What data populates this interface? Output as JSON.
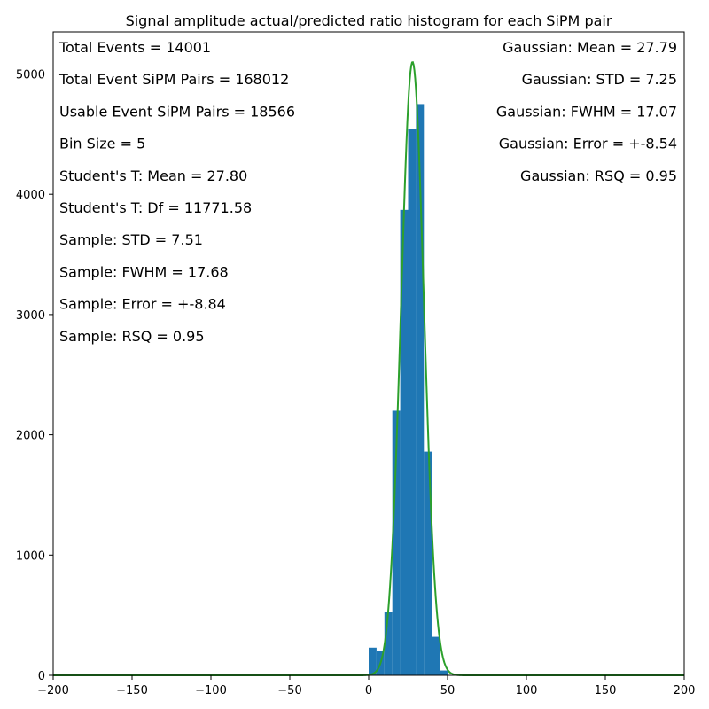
{
  "chart_data": {
    "type": "bar",
    "title": "Signal amplitude actual/predicted ratio histogram for each SiPM pair",
    "xlabel": "",
    "ylabel": "",
    "xlim": [
      -200,
      200
    ],
    "ylim": [
      0,
      5350
    ],
    "x_ticks": [
      -200,
      -150,
      -100,
      -50,
      0,
      50,
      100,
      150,
      200
    ],
    "x_tick_labels": [
      "−200",
      "−150",
      "−100",
      "−50",
      "0",
      "50",
      "100",
      "150",
      "200"
    ],
    "y_ticks": [
      0,
      1000,
      2000,
      3000,
      4000,
      5000
    ],
    "y_tick_labels": [
      "0",
      "1000",
      "2000",
      "3000",
      "4000",
      "5000"
    ],
    "bins": [
      {
        "x0": 0,
        "x1": 5,
        "count": 230
      },
      {
        "x0": 5,
        "x1": 10,
        "count": 200
      },
      {
        "x0": 10,
        "x1": 15,
        "count": 530
      },
      {
        "x0": 15,
        "x1": 20,
        "count": 2200
      },
      {
        "x0": 20,
        "x1": 25,
        "count": 3870
      },
      {
        "x0": 25,
        "x1": 30,
        "count": 4540
      },
      {
        "x0": 30,
        "x1": 35,
        "count": 4750
      },
      {
        "x0": 35,
        "x1": 40,
        "count": 1860
      },
      {
        "x0": 40,
        "x1": 45,
        "count": 320
      },
      {
        "x0": 45,
        "x1": 50,
        "count": 40
      }
    ],
    "fit_curve": {
      "type": "gaussian",
      "mean": 27.79,
      "std": 7.25,
      "amplitude": 5100,
      "color": "#2ca02c"
    },
    "bar_color": "#1f77b4",
    "annotations_left": [
      "Total Events = 14001",
      "Total Event SiPM Pairs = 168012",
      "Usable Event SiPM Pairs = 18566",
      "Bin Size = 5",
      "Student's T: Mean = 27.80",
      "Student's T: Df = 11771.58",
      "Sample: STD = 7.51",
      "Sample: FWHM = 17.68",
      "Sample: Error = +-8.84",
      "Sample: RSQ = 0.95"
    ],
    "annotations_right": [
      "Gaussian: Mean = 27.79",
      "Gaussian: STD = 7.25",
      "Gaussian: FWHM = 17.07",
      "Gaussian: Error = +-8.54",
      "Gaussian: RSQ = 0.95"
    ]
  }
}
